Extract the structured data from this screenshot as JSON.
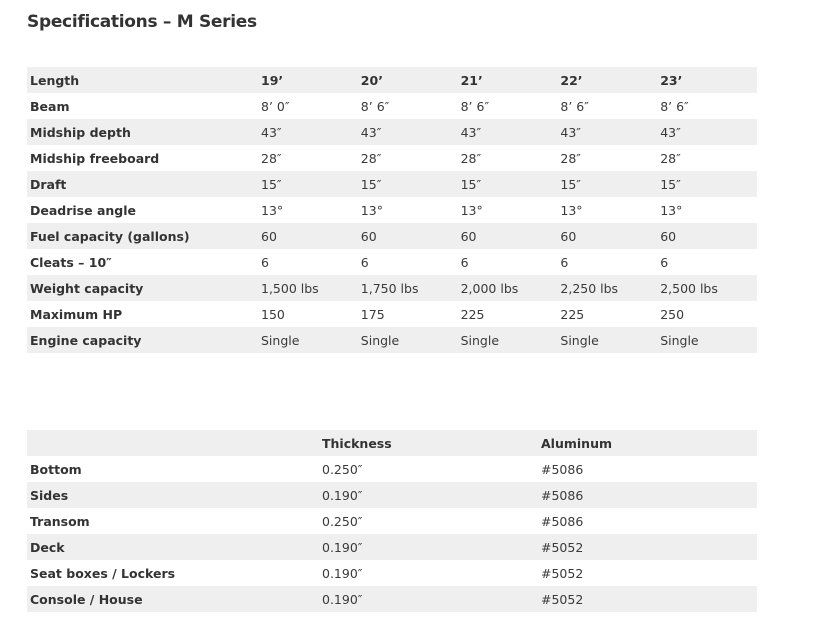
{
  "title": "Specifications – M Series",
  "specs": {
    "header": {
      "label": "Length",
      "values": [
        "19’",
        "20’",
        "21’",
        "22’",
        "23’"
      ]
    },
    "rows": [
      {
        "label": "Beam",
        "values": [
          "8’ 0″",
          "8’ 6″",
          "8’ 6″",
          "8’ 6″",
          "8’ 6″"
        ]
      },
      {
        "label": "Midship depth",
        "values": [
          "43″",
          "43″",
          "43″",
          "43″",
          "43″"
        ]
      },
      {
        "label": "Midship freeboard",
        "values": [
          "28″",
          "28″",
          "28″",
          "28″",
          "28″"
        ]
      },
      {
        "label": "Draft",
        "values": [
          "15″",
          "15″",
          "15″",
          "15″",
          "15″"
        ]
      },
      {
        "label": "Deadrise angle",
        "values": [
          "13°",
          "13°",
          "13°",
          "13°",
          "13°"
        ]
      },
      {
        "label": "Fuel capacity (gallons)",
        "values": [
          "60",
          "60",
          "60",
          "60",
          "60"
        ]
      },
      {
        "label": "Cleats – 10″",
        "values": [
          "6",
          "6",
          "6",
          "6",
          "6"
        ]
      },
      {
        "label": "Weight capacity",
        "values": [
          "1,500 lbs",
          "1,750 lbs",
          "2,000 lbs",
          "2,250 lbs",
          "2,500 lbs"
        ]
      },
      {
        "label": "Maximum HP",
        "values": [
          "150",
          "175",
          "225",
          "225",
          "250"
        ]
      },
      {
        "label": "Engine capacity",
        "values": [
          "Single",
          "Single",
          "Single",
          "Single",
          "Single"
        ]
      }
    ]
  },
  "materials": {
    "header": [
      "",
      "Thickness",
      "Aluminum"
    ],
    "rows": [
      [
        "Bottom",
        "0.250″",
        "#5086"
      ],
      [
        "Sides",
        "0.190″",
        "#5086"
      ],
      [
        "Transom",
        "0.250″",
        "#5086"
      ],
      [
        "Deck",
        "0.190″",
        "#5052"
      ],
      [
        "Seat boxes / Lockers",
        "0.190″",
        "#5052"
      ],
      [
        "Console / House",
        "0.190″",
        "#5052"
      ]
    ]
  }
}
